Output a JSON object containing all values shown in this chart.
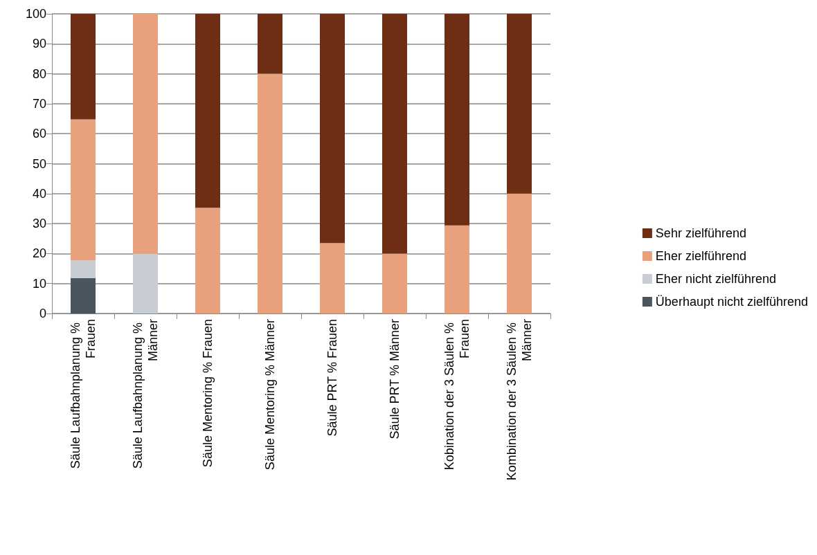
{
  "chart_data": {
    "type": "bar",
    "stacked": true,
    "categories": [
      "Säule Laufbahnplanung % Frauen",
      "Säule Laufbahnplanung % Männer",
      "Säule Mentoring % Frauen",
      "Säule Mentoring % Männer",
      "Säule PRT % Frauen",
      "Säule PRT % Männer",
      "Kobination der 3 Säulen % Frauen",
      "Kombination der 3 Säulen % Männer"
    ],
    "series": [
      {
        "name": "Überhaupt nicht zielführend",
        "color": "#4b5560",
        "values": [
          11.8,
          0,
          0,
          0,
          0,
          0,
          0,
          0
        ]
      },
      {
        "name": "Eher nicht zielführend",
        "color": "#c8cdd4",
        "values": [
          5.9,
          20,
          0,
          0,
          0,
          0,
          0,
          0
        ]
      },
      {
        "name": "Eher zielführend",
        "color": "#e9a07c",
        "values": [
          47.1,
          80,
          35.3,
          80,
          23.5,
          20,
          29.4,
          40
        ]
      },
      {
        "name": "Sehr zielführend",
        "color": "#6e2e14",
        "values": [
          35.3,
          0,
          64.7,
          20,
          76.5,
          80,
          70.6,
          60
        ]
      }
    ],
    "ylim": [
      0,
      100
    ],
    "yticks": [
      0,
      10,
      20,
      30,
      40,
      50,
      60,
      70,
      80,
      90,
      100
    ],
    "grid": "y",
    "legend": "right"
  }
}
